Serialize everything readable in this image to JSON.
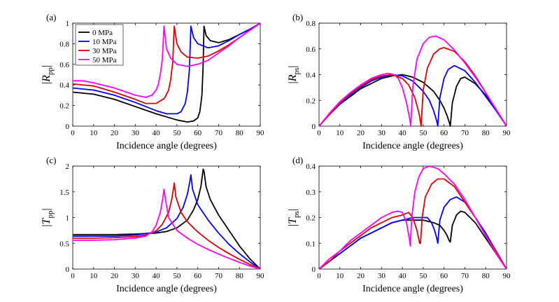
{
  "figure": {
    "legend": {
      "entries": [
        {
          "label": "0 MPa",
          "color": "#000000"
        },
        {
          "label": "10 MPa",
          "color": "#0000ff"
        },
        {
          "label": "30 MPa",
          "color": "#e00000"
        },
        {
          "label": "50 MPa",
          "color": "#ff00ff"
        }
      ]
    }
  },
  "chart_data": [
    {
      "type": "line",
      "panel_label": "(a)",
      "xlabel": "Incidence angle (degrees)",
      "ylabel": {
        "main": "R",
        "sub": "pp"
      },
      "xlim": [
        0,
        90
      ],
      "ylim": [
        0,
        1
      ],
      "xticks": [
        "0",
        "10",
        "20",
        "30",
        "40",
        "50",
        "60",
        "70",
        "80",
        "90"
      ],
      "yticks": [
        "0",
        "0.2",
        "0.4",
        "0.6",
        "0.8",
        "1"
      ],
      "grid": false,
      "legend_position": "top-left",
      "series": [
        {
          "name": "0 MPa",
          "color": "#000000",
          "x": [
            0,
            10,
            20,
            30,
            40,
            50,
            55,
            58,
            60,
            61,
            62,
            62.6,
            63,
            64,
            66,
            70,
            75,
            80,
            85,
            90
          ],
          "y": [
            0.33,
            0.31,
            0.26,
            0.19,
            0.12,
            0.06,
            0.04,
            0.05,
            0.08,
            0.14,
            0.3,
            0.6,
            0.97,
            0.88,
            0.83,
            0.81,
            0.84,
            0.89,
            0.94,
            1.0
          ]
        },
        {
          "name": "10 MPa",
          "color": "#0000ff",
          "x": [
            0,
            10,
            20,
            30,
            40,
            45,
            50,
            52,
            54,
            55,
            56,
            56.7,
            58,
            60,
            65,
            70,
            75,
            80,
            85,
            90
          ],
          "y": [
            0.37,
            0.35,
            0.3,
            0.23,
            0.15,
            0.12,
            0.12,
            0.14,
            0.22,
            0.33,
            0.55,
            0.97,
            0.86,
            0.8,
            0.76,
            0.78,
            0.83,
            0.89,
            0.94,
            1.0
          ]
        },
        {
          "name": "30 MPa",
          "color": "#e00000",
          "x": [
            0,
            10,
            20,
            30,
            35,
            40,
            44,
            46,
            47,
            48,
            48.7,
            50,
            52,
            55,
            60,
            65,
            70,
            75,
            80,
            85,
            90
          ],
          "y": [
            0.41,
            0.39,
            0.33,
            0.26,
            0.22,
            0.22,
            0.27,
            0.35,
            0.45,
            0.62,
            0.97,
            0.8,
            0.72,
            0.67,
            0.66,
            0.68,
            0.73,
            0.79,
            0.86,
            0.93,
            1.0
          ]
        },
        {
          "name": "50 MPa",
          "color": "#ff00ff",
          "x": [
            0,
            5,
            10,
            20,
            30,
            35,
            38,
            40,
            41,
            42,
            43,
            43.8,
            45,
            47,
            50,
            55,
            60,
            65,
            70,
            75,
            80,
            85,
            90
          ],
          "y": [
            0.44,
            0.44,
            0.42,
            0.37,
            0.3,
            0.28,
            0.3,
            0.35,
            0.4,
            0.5,
            0.65,
            0.97,
            0.75,
            0.66,
            0.6,
            0.58,
            0.6,
            0.64,
            0.71,
            0.78,
            0.86,
            0.93,
            1.0
          ]
        }
      ]
    },
    {
      "type": "line",
      "panel_label": "(b)",
      "xlabel": "Incidence angle (degrees)",
      "ylabel": {
        "main": "R",
        "sub": "ps"
      },
      "xlim": [
        0,
        90
      ],
      "ylim": [
        0,
        0.8
      ],
      "xticks": [
        "0",
        "10",
        "20",
        "30",
        "40",
        "50",
        "60",
        "70",
        "80",
        "90"
      ],
      "yticks": [
        "0",
        "0.2",
        "0.4",
        "0.6",
        "0.8"
      ],
      "grid": false,
      "series": [
        {
          "name": "0 MPa",
          "color": "#000000",
          "x": [
            0,
            5,
            10,
            15,
            20,
            25,
            30,
            35,
            40,
            45,
            50,
            55,
            58,
            60,
            61.5,
            62.5,
            63,
            64,
            66,
            68,
            70,
            75,
            80,
            85,
            90
          ],
          "y": [
            0,
            0.09,
            0.17,
            0.23,
            0.29,
            0.33,
            0.37,
            0.39,
            0.4,
            0.38,
            0.34,
            0.27,
            0.2,
            0.14,
            0.08,
            0.03,
            0.0,
            0.18,
            0.31,
            0.37,
            0.38,
            0.33,
            0.24,
            0.13,
            0
          ]
        },
        {
          "name": "10 MPa",
          "color": "#0000ff",
          "x": [
            0,
            5,
            10,
            15,
            20,
            25,
            30,
            35,
            40,
            45,
            50,
            53,
            55,
            56.5,
            57,
            58,
            60,
            62,
            65,
            70,
            75,
            80,
            85,
            90
          ],
          "y": [
            0,
            0.09,
            0.17,
            0.24,
            0.3,
            0.35,
            0.38,
            0.4,
            0.39,
            0.35,
            0.27,
            0.2,
            0.12,
            0.04,
            0.0,
            0.22,
            0.37,
            0.44,
            0.47,
            0.43,
            0.34,
            0.23,
            0.12,
            0
          ]
        },
        {
          "name": "30 MPa",
          "color": "#e00000",
          "x": [
            0,
            5,
            10,
            15,
            20,
            25,
            30,
            35,
            40,
            43,
            46,
            48,
            49,
            50,
            52,
            55,
            58,
            60,
            65,
            70,
            75,
            80,
            85,
            90
          ],
          "y": [
            0,
            0.09,
            0.18,
            0.25,
            0.31,
            0.36,
            0.39,
            0.4,
            0.37,
            0.32,
            0.22,
            0.1,
            0.0,
            0.28,
            0.45,
            0.56,
            0.6,
            0.61,
            0.58,
            0.5,
            0.39,
            0.26,
            0.13,
            0
          ]
        },
        {
          "name": "50 MPa",
          "color": "#ff00ff",
          "x": [
            0,
            5,
            10,
            15,
            20,
            25,
            30,
            33,
            36,
            38,
            40,
            42,
            43.5,
            44,
            45,
            47,
            50,
            53,
            56,
            60,
            65,
            70,
            75,
            80,
            85,
            90
          ],
          "y": [
            0,
            0.1,
            0.19,
            0.26,
            0.32,
            0.37,
            0.4,
            0.41,
            0.4,
            0.37,
            0.3,
            0.18,
            0.06,
            0.0,
            0.3,
            0.52,
            0.64,
            0.69,
            0.7,
            0.67,
            0.59,
            0.49,
            0.38,
            0.26,
            0.13,
            0
          ]
        }
      ]
    },
    {
      "type": "line",
      "panel_label": "(c)",
      "xlabel": "Incidence angle (degrees)",
      "ylabel": {
        "main": "T",
        "sub": "pp"
      },
      "xlim": [
        0,
        90
      ],
      "ylim": [
        0,
        2
      ],
      "xticks": [
        "0",
        "10",
        "20",
        "30",
        "40",
        "50",
        "60",
        "70",
        "80",
        "90"
      ],
      "yticks": [
        "0",
        "0.5",
        "1",
        "1.5",
        "2"
      ],
      "grid": false,
      "series": [
        {
          "name": "0 MPa",
          "color": "#000000",
          "x": [
            0,
            10,
            20,
            30,
            40,
            45,
            50,
            55,
            58,
            60,
            61.5,
            62.6,
            63,
            64,
            66,
            70,
            75,
            80,
            85,
            90
          ],
          "y": [
            0.67,
            0.67,
            0.67,
            0.68,
            0.7,
            0.73,
            0.8,
            0.95,
            1.15,
            1.35,
            1.6,
            1.94,
            1.9,
            1.6,
            1.35,
            1.05,
            0.75,
            0.45,
            0.2,
            0
          ]
        },
        {
          "name": "10 MPa",
          "color": "#0000ff",
          "x": [
            0,
            10,
            20,
            30,
            40,
            45,
            50,
            53,
            55,
            56.2,
            56.7,
            57.5,
            60,
            65,
            70,
            75,
            80,
            85,
            90
          ],
          "y": [
            0.64,
            0.64,
            0.64,
            0.66,
            0.72,
            0.8,
            0.98,
            1.2,
            1.45,
            1.7,
            1.83,
            1.55,
            1.25,
            0.95,
            0.7,
            0.48,
            0.3,
            0.14,
            0
          ]
        },
        {
          "name": "30 MPa",
          "color": "#e00000",
          "x": [
            0,
            10,
            20,
            30,
            35,
            40,
            43,
            46,
            47.5,
            48.3,
            48.7,
            49.5,
            52,
            55,
            60,
            65,
            70,
            75,
            80,
            85,
            90
          ],
          "y": [
            0.6,
            0.6,
            0.61,
            0.63,
            0.66,
            0.74,
            0.87,
            1.1,
            1.35,
            1.55,
            1.67,
            1.4,
            1.1,
            0.92,
            0.72,
            0.56,
            0.42,
            0.3,
            0.19,
            0.09,
            0
          ]
        },
        {
          "name": "50 MPa",
          "color": "#ff00ff",
          "x": [
            0,
            10,
            20,
            30,
            35,
            38,
            40,
            42,
            43,
            43.8,
            44.5,
            46,
            50,
            55,
            60,
            65,
            70,
            75,
            80,
            85,
            90
          ],
          "y": [
            0.56,
            0.56,
            0.57,
            0.6,
            0.64,
            0.72,
            0.85,
            1.1,
            1.32,
            1.55,
            1.35,
            1.0,
            0.75,
            0.6,
            0.48,
            0.38,
            0.29,
            0.21,
            0.13,
            0.06,
            0
          ]
        }
      ]
    },
    {
      "type": "line",
      "panel_label": "(d)",
      "xlabel": "Incidence angle (degrees)",
      "ylabel": {
        "main": "T",
        "sub": "ps"
      },
      "xlim": [
        0,
        90
      ],
      "ylim": [
        0,
        0.4
      ],
      "xticks": [
        "0",
        "10",
        "20",
        "30",
        "40",
        "50",
        "60",
        "70",
        "80",
        "90"
      ],
      "yticks": [
        "0",
        "0.1",
        "0.2",
        "0.3",
        "0.4"
      ],
      "grid": false,
      "series": [
        {
          "name": "0 MPa",
          "color": "#000000",
          "x": [
            0,
            5,
            10,
            15,
            20,
            25,
            30,
            35,
            40,
            45,
            50,
            55,
            58,
            60,
            61.5,
            62.5,
            63,
            64,
            66,
            68,
            70,
            75,
            80,
            85,
            90
          ],
          "y": [
            0,
            0.03,
            0.06,
            0.09,
            0.12,
            0.14,
            0.16,
            0.18,
            0.19,
            0.19,
            0.19,
            0.18,
            0.17,
            0.15,
            0.13,
            0.11,
            0.105,
            0.17,
            0.21,
            0.225,
            0.22,
            0.18,
            0.12,
            0.06,
            0
          ]
        },
        {
          "name": "10 MPa",
          "color": "#0000ff",
          "x": [
            0,
            5,
            10,
            15,
            20,
            25,
            30,
            35,
            40,
            45,
            50,
            52,
            54,
            55.5,
            56.5,
            57,
            58,
            60,
            63,
            66,
            70,
            75,
            80,
            85,
            90
          ],
          "y": [
            0,
            0.03,
            0.06,
            0.09,
            0.12,
            0.14,
            0.16,
            0.18,
            0.19,
            0.2,
            0.2,
            0.2,
            0.18,
            0.15,
            0.12,
            0.1,
            0.19,
            0.24,
            0.27,
            0.28,
            0.26,
            0.2,
            0.14,
            0.07,
            0
          ]
        },
        {
          "name": "30 MPa",
          "color": "#e00000",
          "x": [
            0,
            5,
            10,
            15,
            20,
            25,
            30,
            35,
            40,
            43,
            45,
            47,
            48.3,
            48.7,
            49.5,
            51,
            54,
            57,
            60,
            65,
            70,
            75,
            80,
            85,
            90
          ],
          "y": [
            0,
            0.03,
            0.07,
            0.1,
            0.13,
            0.16,
            0.18,
            0.2,
            0.21,
            0.22,
            0.2,
            0.15,
            0.1,
            0.1,
            0.2,
            0.28,
            0.33,
            0.35,
            0.35,
            0.32,
            0.26,
            0.2,
            0.13,
            0.07,
            0
          ]
        },
        {
          "name": "50 MPa",
          "color": "#ff00ff",
          "x": [
            0,
            5,
            10,
            15,
            20,
            25,
            30,
            35,
            38,
            40,
            42,
            43.3,
            43.8,
            44.5,
            46,
            48,
            50,
            53,
            57,
            60,
            65,
            70,
            75,
            80,
            85,
            90
          ],
          "y": [
            0,
            0.04,
            0.07,
            0.11,
            0.14,
            0.17,
            0.2,
            0.22,
            0.225,
            0.22,
            0.18,
            0.12,
            0.09,
            0.2,
            0.3,
            0.36,
            0.39,
            0.4,
            0.39,
            0.37,
            0.33,
            0.27,
            0.2,
            0.13,
            0.06,
            0
          ]
        }
      ]
    }
  ]
}
